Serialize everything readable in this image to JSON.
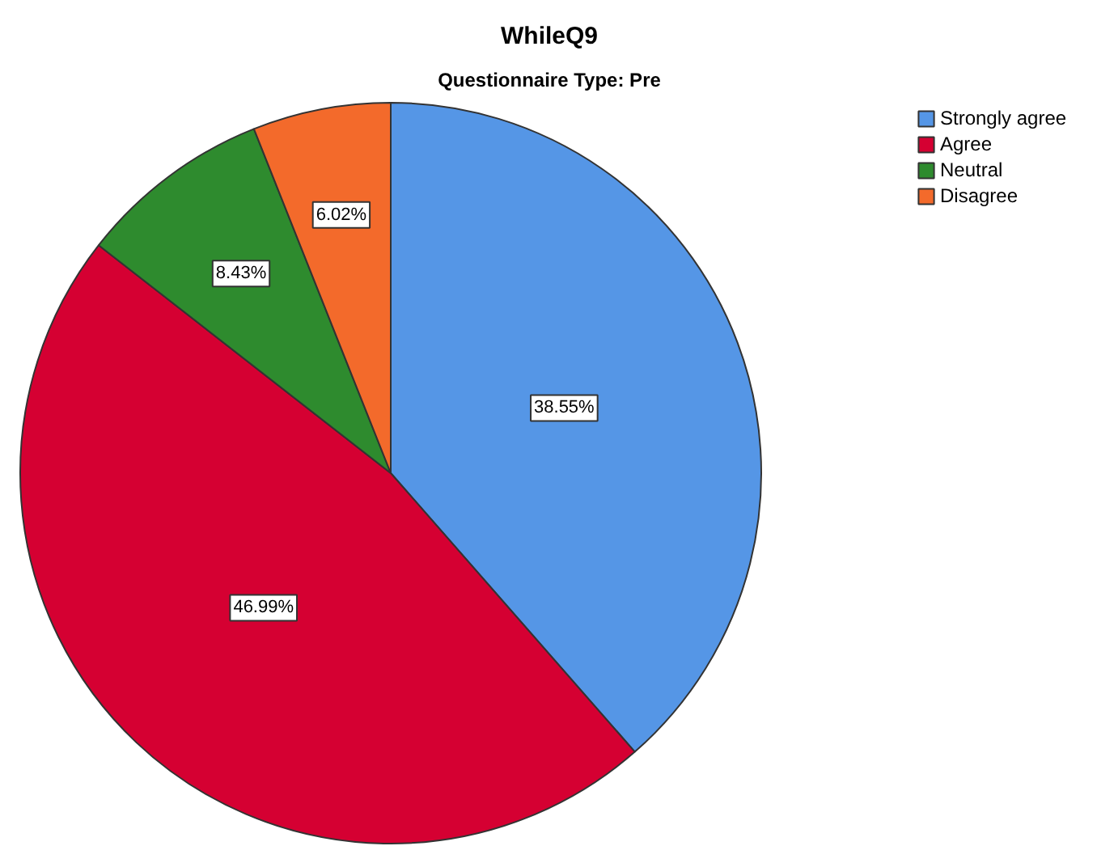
{
  "chart_data": {
    "type": "pie",
    "title": "WhileQ9",
    "subtitle": "Questionnaire Type: Pre",
    "categories": [
      "Strongly agree",
      "Agree",
      "Neutral",
      "Disagree"
    ],
    "values": [
      38.55,
      46.99,
      8.43,
      6.02
    ],
    "colors": [
      "#5596e6",
      "#d50032",
      "#2e8b2e",
      "#f36a2b"
    ],
    "value_labels": [
      "38.55%",
      "46.99%",
      "8.43%",
      "6.02%"
    ],
    "legend": "top right"
  }
}
